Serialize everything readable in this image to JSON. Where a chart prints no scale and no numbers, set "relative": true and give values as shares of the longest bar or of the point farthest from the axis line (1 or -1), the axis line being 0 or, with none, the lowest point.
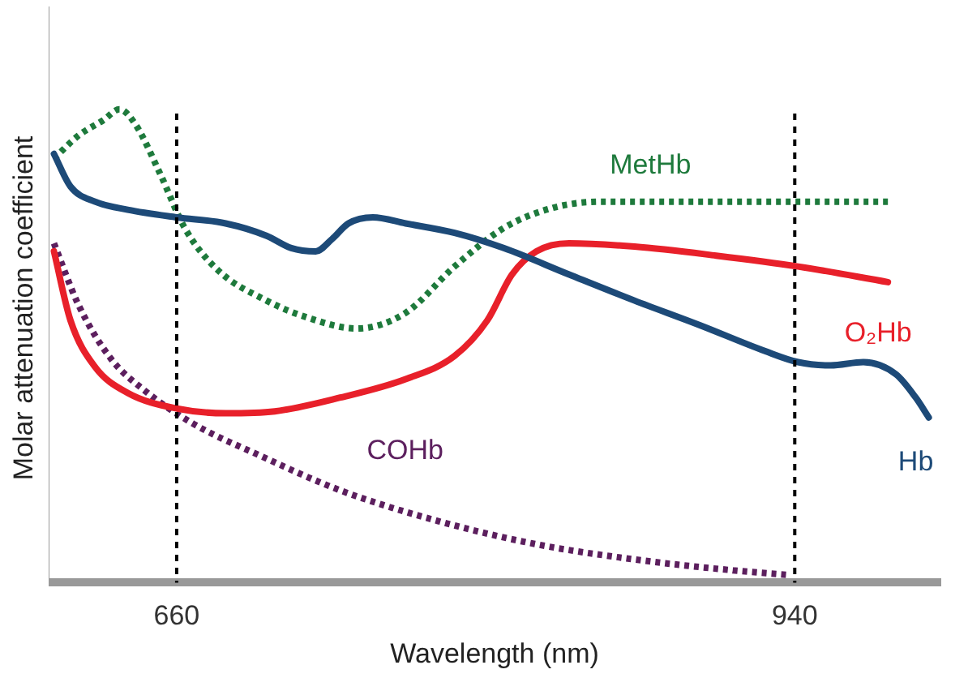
{
  "chart_data": {
    "type": "line",
    "relative": true,
    "xlabel": "Wavelength (nm)",
    "ylabel": "Molar attenuation coefficient",
    "xlim": [
      602,
      1006
    ],
    "xticks": [
      660,
      940
    ],
    "grid": false,
    "legend": false,
    "marker": "none",
    "ref_lines": [
      {
        "axis": "x",
        "value": 660,
        "color": "#000000",
        "line_style": "dashed"
      },
      {
        "axis": "x",
        "value": 940,
        "color": "#000000",
        "line_style": "dashed"
      }
    ],
    "series": [
      {
        "name": "Hb",
        "color": "#1d4a78",
        "line_style": "solid",
        "x": [
          604.4,
          611.9,
          623,
          637.8,
          660,
          682.2,
          700.7,
          711.9,
          723,
          730.4,
          737.8,
          748.9,
          763.7,
          785.9,
          808.1,
          837.8,
          867.4,
          897,
          926.7,
          941.5,
          956.3,
          971.1,
          985.9,
          994.8,
          1000.7
        ],
        "values": [
          0.906,
          0.837,
          0.805,
          0.788,
          0.772,
          0.759,
          0.733,
          0.707,
          0.7,
          0.726,
          0.759,
          0.772,
          0.759,
          0.739,
          0.707,
          0.651,
          0.596,
          0.544,
          0.489,
          0.466,
          0.459,
          0.466,
          0.44,
          0.391,
          0.349
        ]
      },
      {
        "name": "O₂Hb",
        "color": "#e8202a",
        "line_style": "solid",
        "x": [
          604.4,
          611.9,
          623,
          637.8,
          660,
          682.2,
          704.4,
          734.1,
          763.7,
          785.9,
          800.7,
          811.9,
          823,
          837.8,
          867.4,
          904.4,
          941.5,
          982.2
        ],
        "values": [
          0.7,
          0.554,
          0.456,
          0.401,
          0.368,
          0.358,
          0.362,
          0.391,
          0.43,
          0.479,
          0.554,
          0.651,
          0.7,
          0.717,
          0.71,
          0.691,
          0.668,
          0.635
        ]
      },
      {
        "name": "MetHb",
        "color": "#1e7a3c",
        "line_style": "dotted",
        "x": [
          604.4,
          615.6,
          626.7,
          634.1,
          641.5,
          652.6,
          663.7,
          678.5,
          700.7,
          719.3,
          741.5,
          763.7,
          785.9,
          808.1,
          830.4,
          852.6,
          882.2,
          926.7,
          982.2
        ],
        "values": [
          0.896,
          0.945,
          0.977,
          1,
          0.967,
          0.863,
          0.749,
          0.661,
          0.596,
          0.56,
          0.537,
          0.57,
          0.668,
          0.749,
          0.792,
          0.805,
          0.805,
          0.805,
          0.805
        ]
      },
      {
        "name": "COHb",
        "color": "#5c1f5e",
        "line_style": "dotted",
        "x": [
          604.4,
          615.6,
          630.4,
          645.2,
          667.4,
          697,
          734.1,
          778.5,
          823,
          867.4,
          911.9,
          937.8
        ],
        "values": [
          0.717,
          0.586,
          0.472,
          0.407,
          0.336,
          0.27,
          0.195,
          0.13,
          0.081,
          0.049,
          0.026,
          0.016
        ]
      }
    ]
  }
}
